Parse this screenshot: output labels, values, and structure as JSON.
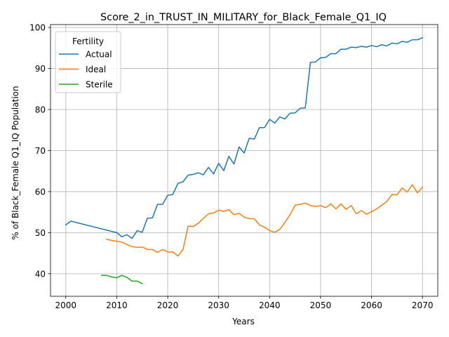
{
  "chart_data": {
    "type": "line",
    "title": "Score_2_in_TRUST_IN_MILITARY_for_Black_Female_Q1_IQ",
    "xlabel": "Years",
    "ylabel": "% of Black_Female Q1_IQ Population",
    "xlim": [
      1997,
      2073
    ],
    "ylim": [
      34.5,
      100.7
    ],
    "xticks": [
      2000,
      2010,
      2020,
      2030,
      2040,
      2050,
      2060,
      2070
    ],
    "yticks": [
      40,
      50,
      60,
      70,
      80,
      90,
      100
    ],
    "grid": true,
    "legend": {
      "title": "Fertility",
      "placement": "top-left"
    },
    "series": [
      {
        "name": "Actual",
        "color": "#1f77b4",
        "x": [
          2000,
          2001,
          2010,
          2011,
          2012,
          2013,
          2014,
          2015,
          2016,
          2017,
          2018,
          2019,
          2020,
          2021,
          2022,
          2023,
          2024,
          2025,
          2026,
          2027,
          2028,
          2029,
          2030,
          2031,
          2032,
          2033,
          2034,
          2035,
          2036,
          2037,
          2038,
          2039,
          2040,
          2041,
          2042,
          2043,
          2044,
          2045,
          2046,
          2047,
          2048,
          2049,
          2050,
          2051,
          2052,
          2053,
          2054,
          2055,
          2056,
          2057,
          2058,
          2059,
          2060,
          2061,
          2062,
          2063,
          2064,
          2065,
          2066,
          2067,
          2068,
          2069,
          2070
        ],
        "y": [
          51.9,
          52.8,
          50.0,
          49.0,
          49.5,
          48.6,
          50.5,
          50.1,
          53.5,
          53.6,
          56.9,
          56.9,
          59.1,
          59.3,
          62.0,
          62.4,
          64.0,
          64.2,
          64.6,
          64.1,
          65.9,
          64.3,
          66.9,
          65.1,
          68.6,
          66.7,
          70.9,
          69.4,
          73.0,
          72.8,
          75.6,
          75.6,
          77.6,
          76.7,
          78.2,
          77.7,
          79.1,
          79.2,
          80.3,
          80.4,
          91.5,
          91.6,
          92.6,
          92.7,
          93.6,
          93.6,
          94.7,
          94.7,
          95.2,
          95.1,
          95.4,
          95.2,
          95.6,
          95.3,
          95.8,
          95.5,
          96.2,
          96.0,
          96.6,
          96.4,
          97.0,
          97.0,
          97.5
        ]
      },
      {
        "name": "Ideal",
        "color": "#ff7f0e",
        "x": [
          2008,
          2009,
          2010,
          2011,
          2012,
          2013,
          2014,
          2015,
          2016,
          2017,
          2018,
          2019,
          2020,
          2021,
          2022,
          2023,
          2024,
          2025,
          2026,
          2027,
          2028,
          2029,
          2030,
          2031,
          2032,
          2033,
          2034,
          2035,
          2036,
          2037,
          2038,
          2039,
          2040,
          2041,
          2042,
          2043,
          2044,
          2045,
          2046,
          2047,
          2048,
          2049,
          2050,
          2051,
          2052,
          2053,
          2054,
          2055,
          2056,
          2057,
          2058,
          2059,
          2060,
          2061,
          2062,
          2063,
          2064,
          2065,
          2066,
          2067,
          2068,
          2069,
          2070
        ],
        "y": [
          48.4,
          48.1,
          47.9,
          47.7,
          47.1,
          46.6,
          46.4,
          46.5,
          45.9,
          45.9,
          45.2,
          45.9,
          45.3,
          45.3,
          44.3,
          45.9,
          51.6,
          51.5,
          52.3,
          53.5,
          54.6,
          54.8,
          55.5,
          55.2,
          55.6,
          54.4,
          54.7,
          53.8,
          53.4,
          53.4,
          51.9,
          51.3,
          50.5,
          50.1,
          50.8,
          52.5,
          54.4,
          56.7,
          56.9,
          57.2,
          56.6,
          56.4,
          56.6,
          56.1,
          57.0,
          55.8,
          57.0,
          55.7,
          56.6,
          54.6,
          55.4,
          54.5,
          55.1,
          55.8,
          56.7,
          57.6,
          59.3,
          59.2,
          60.9,
          59.9,
          61.7,
          59.7,
          61.1
        ]
      },
      {
        "name": "Sterile",
        "color": "#2ca02c",
        "x": [
          2007,
          2008,
          2009,
          2010,
          2011,
          2012,
          2013,
          2014,
          2015
        ],
        "y": [
          39.6,
          39.6,
          39.2,
          39.0,
          39.6,
          39.1,
          38.2,
          38.2,
          37.6
        ]
      }
    ]
  }
}
